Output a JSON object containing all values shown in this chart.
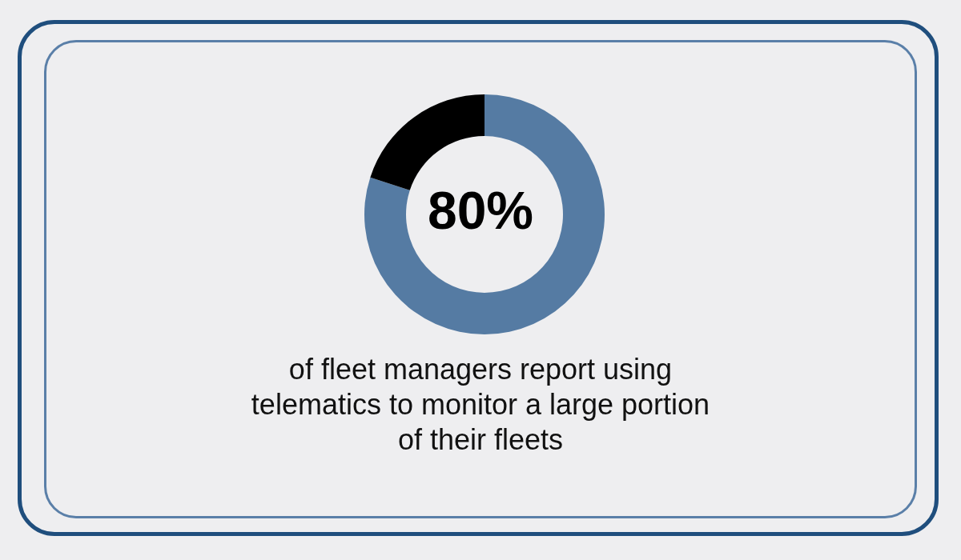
{
  "chart_data": {
    "type": "donut",
    "categories": [
      null,
      null
    ],
    "values": [
      80,
      20
    ],
    "colors": [
      "#557ba3",
      "#000000"
    ],
    "title": "80%",
    "annotations": [
      "of fleet managers report using telematics to monitor a large portion of their fleets"
    ]
  }
}
